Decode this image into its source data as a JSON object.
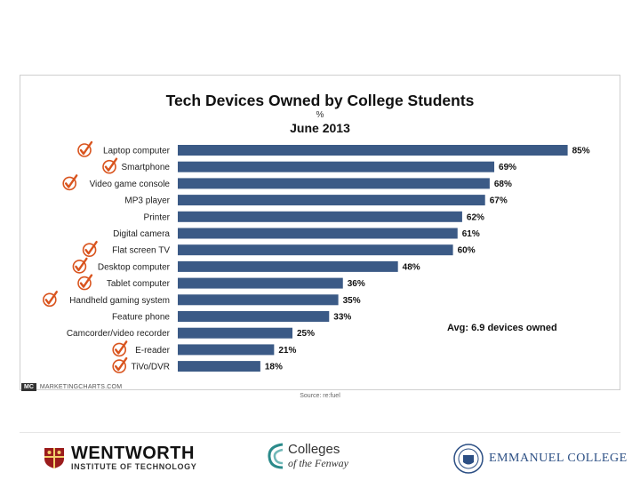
{
  "chart_data": {
    "type": "bar",
    "orientation": "horizontal",
    "title": "Tech Devices Owned by College Students",
    "unit": "%",
    "subtitle": "June 2013",
    "categories": [
      "Laptop computer",
      "Smartphone",
      "Video game console",
      "MP3 player",
      "Printer",
      "Digital camera",
      "Flat screen TV",
      "Desktop computer",
      "Tablet computer",
      "Handheld gaming system",
      "Feature phone",
      "Camcorder/video recorder",
      "E-reader",
      "TiVo/DVR"
    ],
    "values": [
      85,
      69,
      68,
      67,
      62,
      61,
      60,
      48,
      36,
      35,
      33,
      25,
      21,
      18
    ],
    "value_labels": [
      "85%",
      "69%",
      "68%",
      "67%",
      "62%",
      "61%",
      "60%",
      "48%",
      "36%",
      "35%",
      "33%",
      "25%",
      "21%",
      "18%"
    ],
    "checked": [
      true,
      true,
      true,
      false,
      false,
      false,
      true,
      true,
      true,
      true,
      false,
      false,
      true,
      true
    ],
    "xlim": [
      0,
      100
    ],
    "annotation": "Avg: 6.9 devices owned",
    "source": "Source: re:fuel",
    "watermark_badge": "MC",
    "watermark": "MARKETINGCHARTS.COM"
  },
  "colors": {
    "bar": "#3b5a86",
    "check": "#d9541e"
  },
  "footer": {
    "wentworth_name": "WENTWORTH",
    "wentworth_sub": "INSTITUTE OF TECHNOLOGY",
    "fenway_top": "Colleges",
    "fenway_bottom": "of the Fenway",
    "emmanuel_name": "EMMANUEL COLLEGE"
  }
}
